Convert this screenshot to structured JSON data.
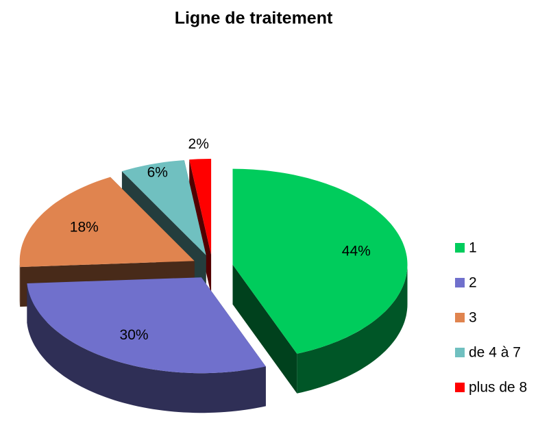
{
  "chart_data": {
    "type": "pie3d",
    "title": "Ligne de traitement",
    "categories": [
      "1",
      "2",
      "3",
      "de 4 à 7",
      "plus de 8"
    ],
    "values": [
      44,
      30,
      18,
      6,
      2
    ],
    "value_labels": [
      "44%",
      "30%",
      "18%",
      "6%",
      "2%"
    ],
    "colors": [
      "#00cc5c",
      "#7070cc",
      "#e0844f",
      "#70c0c0",
      "#ff0000"
    ],
    "legend": "right"
  }
}
